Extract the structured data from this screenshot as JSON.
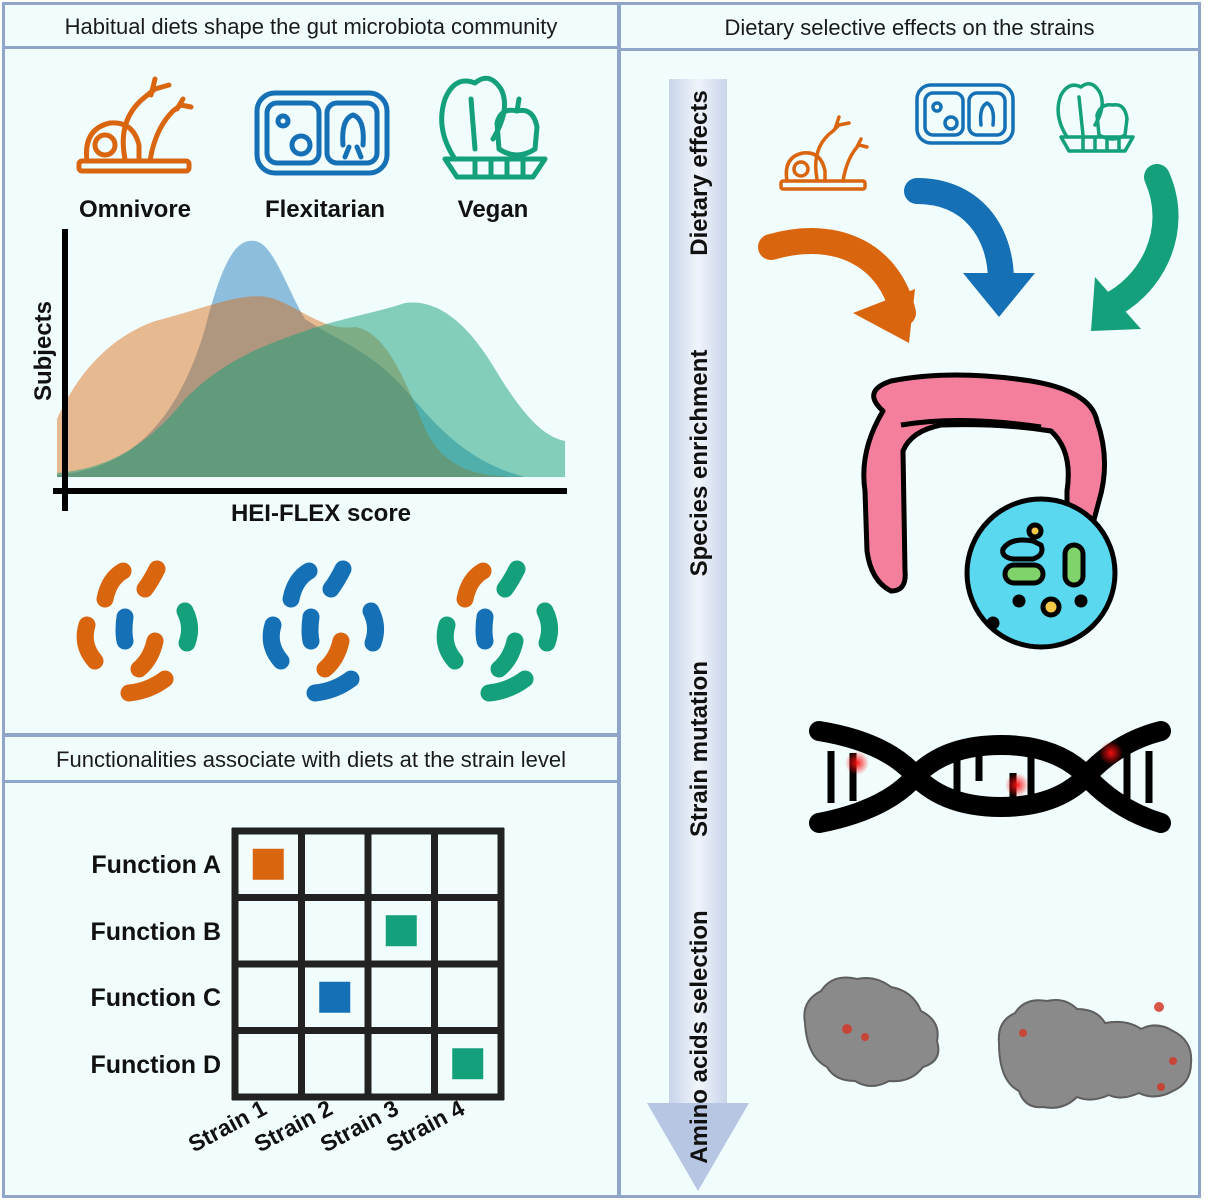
{
  "panels": {
    "habitual": {
      "title": "Habitual diets shape the gut microbiota community",
      "diets": [
        "Omnivore",
        "Flexitarian",
        "Vegan"
      ],
      "y_axis_label": "Subjects",
      "x_axis_label": "HEI-FLEX score"
    },
    "functionalities": {
      "title": "Functionalities associate with diets at the strain level",
      "functions": [
        "Function A",
        "Function B",
        "Function C",
        "Function D"
      ],
      "strains": [
        "Strain 1",
        "Strain 2",
        "Strain 3",
        "Strain 4"
      ],
      "associations": [
        {
          "function": 0,
          "strain": 0,
          "diet": "Omnivore"
        },
        {
          "function": 1,
          "strain": 2,
          "diet": "Vegan"
        },
        {
          "function": 2,
          "strain": 1,
          "diet": "Flexitarian"
        },
        {
          "function": 3,
          "strain": 3,
          "diet": "Vegan"
        }
      ]
    },
    "selective": {
      "title": "Dietary selective effects on the strains",
      "steps": [
        "Dietary effects",
        "Species enrichment",
        "Strain mutation",
        "Amino acids selection"
      ]
    }
  },
  "colors": {
    "omnivore": "#d9650e",
    "flexitarian": "#1570b5",
    "vegan": "#14a07a",
    "border": "#8fa6c8",
    "background": "#f1fdfd"
  },
  "icons": [
    "meat-icon",
    "lunchbox-icon",
    "vegetables-icon",
    "colon-icon",
    "bacteria-icon",
    "dna-icon",
    "protein-structure-icon"
  ]
}
